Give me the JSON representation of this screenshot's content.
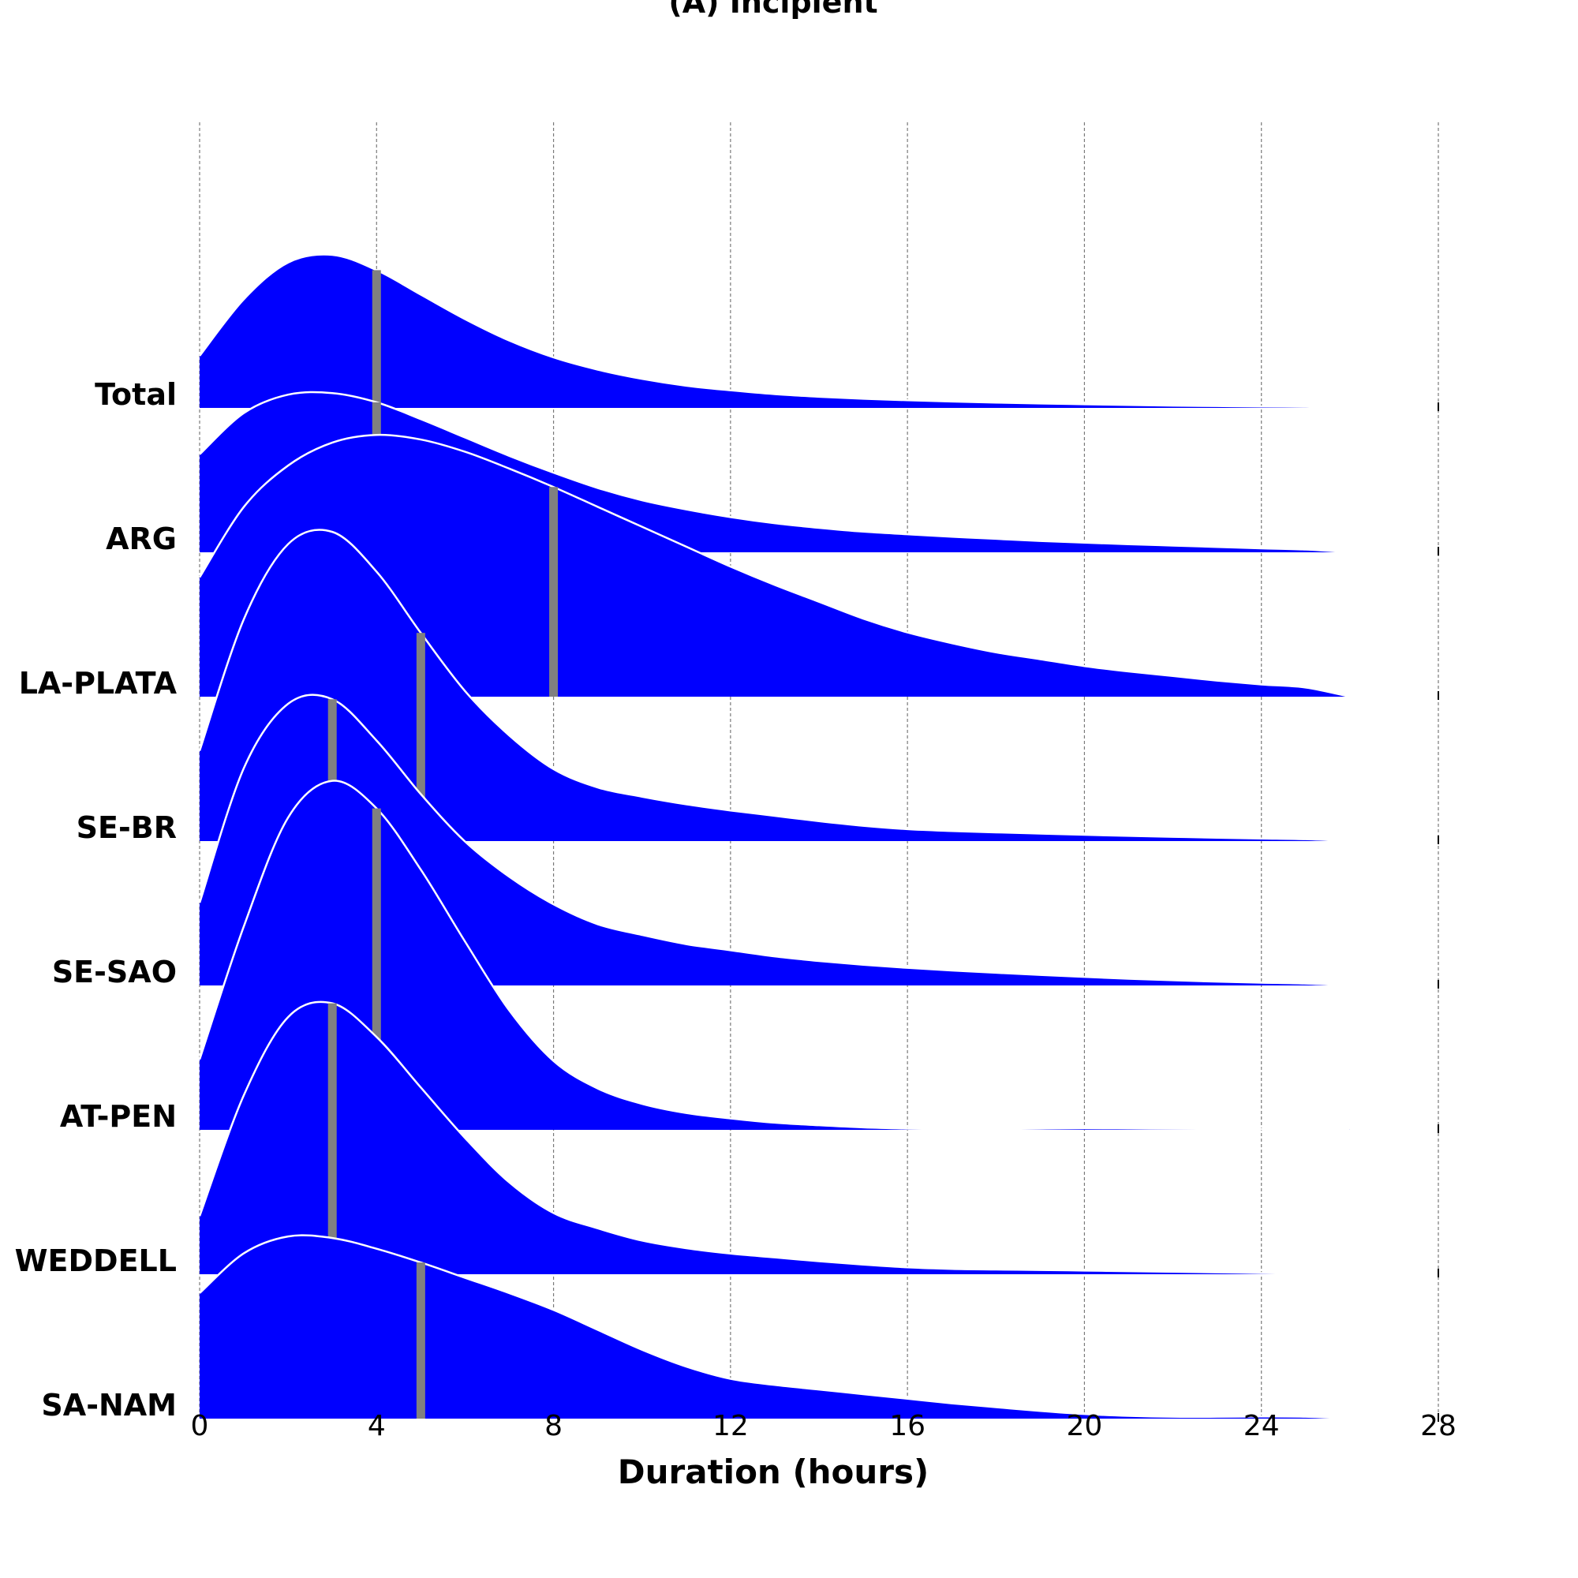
{
  "chart_data": {
    "type": "ridgeline",
    "title": "(A) Incipient",
    "xlabel": "Duration (hours)",
    "ylabel": "",
    "xlim": [
      0,
      28
    ],
    "xticks": [
      0,
      4,
      8,
      12,
      16,
      20,
      24,
      28
    ],
    "x_data_max": 26,
    "grid": "vertical dashed",
    "fill_color": "#0000ff",
    "median_color": "#808080",
    "curve_x": [
      0,
      1,
      2,
      3,
      4,
      5,
      6,
      7,
      8,
      9,
      10,
      11,
      12,
      13,
      14,
      15,
      16,
      17,
      18,
      19,
      20,
      21,
      22,
      23,
      24,
      25,
      26
    ],
    "series": [
      {
        "name": "Total",
        "median": 4,
        "density": [
          0.34,
          0.71,
          0.95,
          1.0,
          0.9,
          0.74,
          0.58,
          0.44,
          0.33,
          0.25,
          0.19,
          0.145,
          0.115,
          0.09,
          0.073,
          0.06,
          0.05,
          0.042,
          0.035,
          0.029,
          0.024,
          0.019,
          0.015,
          0.012,
          0.009,
          0.007,
          0.0
        ]
      },
      {
        "name": "ARG",
        "median": 4,
        "density": [
          0.64,
          0.91,
          1.03,
          1.04,
          0.98,
          0.87,
          0.75,
          0.63,
          0.52,
          0.42,
          0.34,
          0.28,
          0.23,
          0.19,
          0.16,
          0.135,
          0.118,
          0.102,
          0.088,
          0.074,
          0.063,
          0.053,
          0.044,
          0.035,
          0.026,
          0.018,
          0.0
        ]
      },
      {
        "name": "LA-PLATA",
        "median": 8,
        "density": [
          0.78,
          1.24,
          1.51,
          1.66,
          1.71,
          1.68,
          1.6,
          1.49,
          1.37,
          1.24,
          1.11,
          0.98,
          0.85,
          0.73,
          0.62,
          0.51,
          0.42,
          0.35,
          0.29,
          0.245,
          0.2,
          0.165,
          0.135,
          0.105,
          0.08,
          0.06,
          0.0
        ]
      },
      {
        "name": "SE-BR",
        "median": 5,
        "density": [
          0.59,
          1.45,
          1.94,
          2.02,
          1.76,
          1.36,
          0.98,
          0.69,
          0.47,
          0.35,
          0.29,
          0.24,
          0.2,
          0.165,
          0.13,
          0.1,
          0.078,
          0.066,
          0.057,
          0.049,
          0.041,
          0.034,
          0.028,
          0.022,
          0.017,
          0.012,
          0.0
        ]
      },
      {
        "name": "SE-SAO",
        "median": 3,
        "density": [
          0.54,
          1.42,
          1.84,
          1.87,
          1.6,
          1.25,
          0.94,
          0.71,
          0.53,
          0.4,
          0.33,
          0.27,
          0.23,
          0.19,
          0.16,
          0.135,
          0.115,
          0.098,
          0.083,
          0.069,
          0.056,
          0.044,
          0.034,
          0.025,
          0.018,
          0.012,
          0.0
        ]
      },
      {
        "name": "AT-PEN",
        "median": 4,
        "density": [
          0.46,
          1.33,
          2.04,
          2.28,
          2.1,
          1.7,
          1.23,
          0.78,
          0.45,
          0.27,
          0.17,
          0.11,
          0.075,
          0.047,
          0.03,
          0.016,
          0.008,
          0.004,
          0.005,
          0.008,
          0.01,
          0.009,
          0.007,
          0.006,
          0.005,
          0.005,
          0.005
        ]
      },
      {
        "name": "WEDDELL",
        "median": 3,
        "density": [
          0.38,
          1.17,
          1.68,
          1.77,
          1.55,
          1.22,
          0.89,
          0.6,
          0.4,
          0.3,
          0.22,
          0.17,
          0.135,
          0.11,
          0.085,
          0.063,
          0.045,
          0.035,
          0.031,
          0.028,
          0.024,
          0.02,
          0.016,
          0.012,
          0.008,
          0.004,
          0.0
        ]
      },
      {
        "name": "SA-NAM",
        "median": 5,
        "density": [
          0.82,
          1.08,
          1.19,
          1.18,
          1.11,
          1.02,
          0.92,
          0.82,
          0.71,
          0.58,
          0.45,
          0.34,
          0.26,
          0.22,
          0.19,
          0.16,
          0.13,
          0.1,
          0.075,
          0.05,
          0.03,
          0.018,
          0.012,
          0.012,
          0.014,
          0.012,
          0.0
        ]
      }
    ]
  }
}
